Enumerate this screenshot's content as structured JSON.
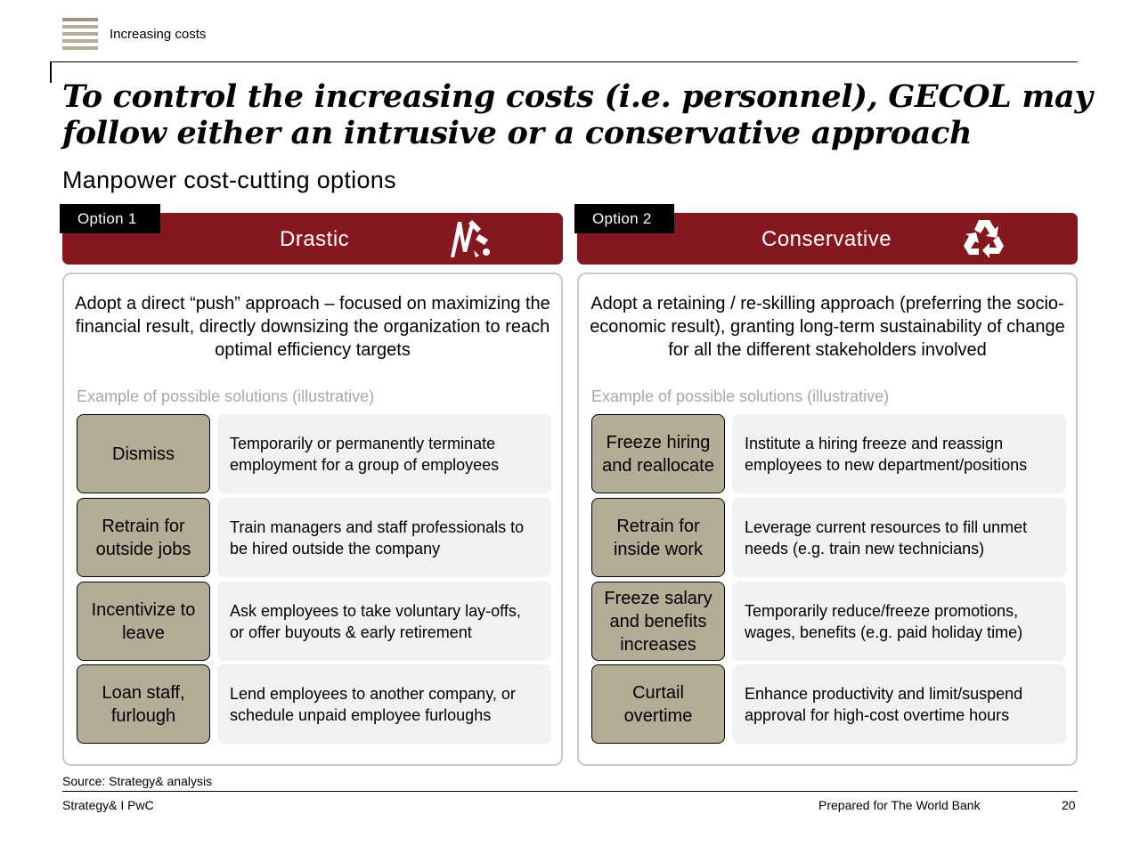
{
  "header": {
    "section_label": "Increasing costs"
  },
  "title": "To control the increasing costs (i.e. personnel), GECOL may follow either an intrusive or a conservative approach",
  "subtitle": "Manpower cost-cutting options",
  "options": [
    {
      "tag": "Option 1",
      "name": "Drastic",
      "icon": "broken-chain-icon",
      "intro": "Adopt a direct “push” approach – focused on maximizing the financial result, directly downsizing the organization to reach optimal efficiency targets",
      "example_label": "Example of possible solutions (illustrative)",
      "rows": [
        {
          "key": "Dismiss",
          "desc": "Temporarily or permanently terminate employment for a group of employees"
        },
        {
          "key": "Retrain for outside jobs",
          "desc": "Train managers and staff professionals to be hired outside the company"
        },
        {
          "key": "Incentivize to leave",
          "desc": "Ask employees to take voluntary lay-offs, or offer buyouts & early retirement"
        },
        {
          "key": "Loan staff, furlough",
          "desc": "Lend employees to another company, or schedule unpaid employee furloughs"
        }
      ]
    },
    {
      "tag": "Option 2",
      "name": "Conservative",
      "icon": "recycle-icon",
      "intro": "Adopt a retaining / re-skilling approach (preferring the socio-economic result), granting long-term sustainability of change for all the different stakeholders involved",
      "example_label": "Example of possible solutions (illustrative)",
      "rows": [
        {
          "key": "Freeze hiring and reallocate",
          "desc": "Institute a hiring freeze and reassign employees to new department/positions"
        },
        {
          "key": "Retrain for inside work",
          "desc": "Leverage current resources to fill unmet needs (e.g. train new technicians)"
        },
        {
          "key": "Freeze salary and benefits increases",
          "desc": "Temporarily reduce/freeze promotions, wages, benefits (e.g. paid holiday time)"
        },
        {
          "key": "Curtail overtime",
          "desc": "Enhance productivity and limit/suspend approval for high-cost overtime hours"
        }
      ]
    }
  ],
  "footer": {
    "source": "Source: Strategy& analysis",
    "left": "Strategy& I PwC",
    "middle": "Prepared for The World Bank",
    "page": "20"
  },
  "colors": {
    "banner": "#85171f",
    "key_box": "#b3ad97",
    "desc_box": "#f1f1f1",
    "muted_text": "#a7a7a7"
  }
}
